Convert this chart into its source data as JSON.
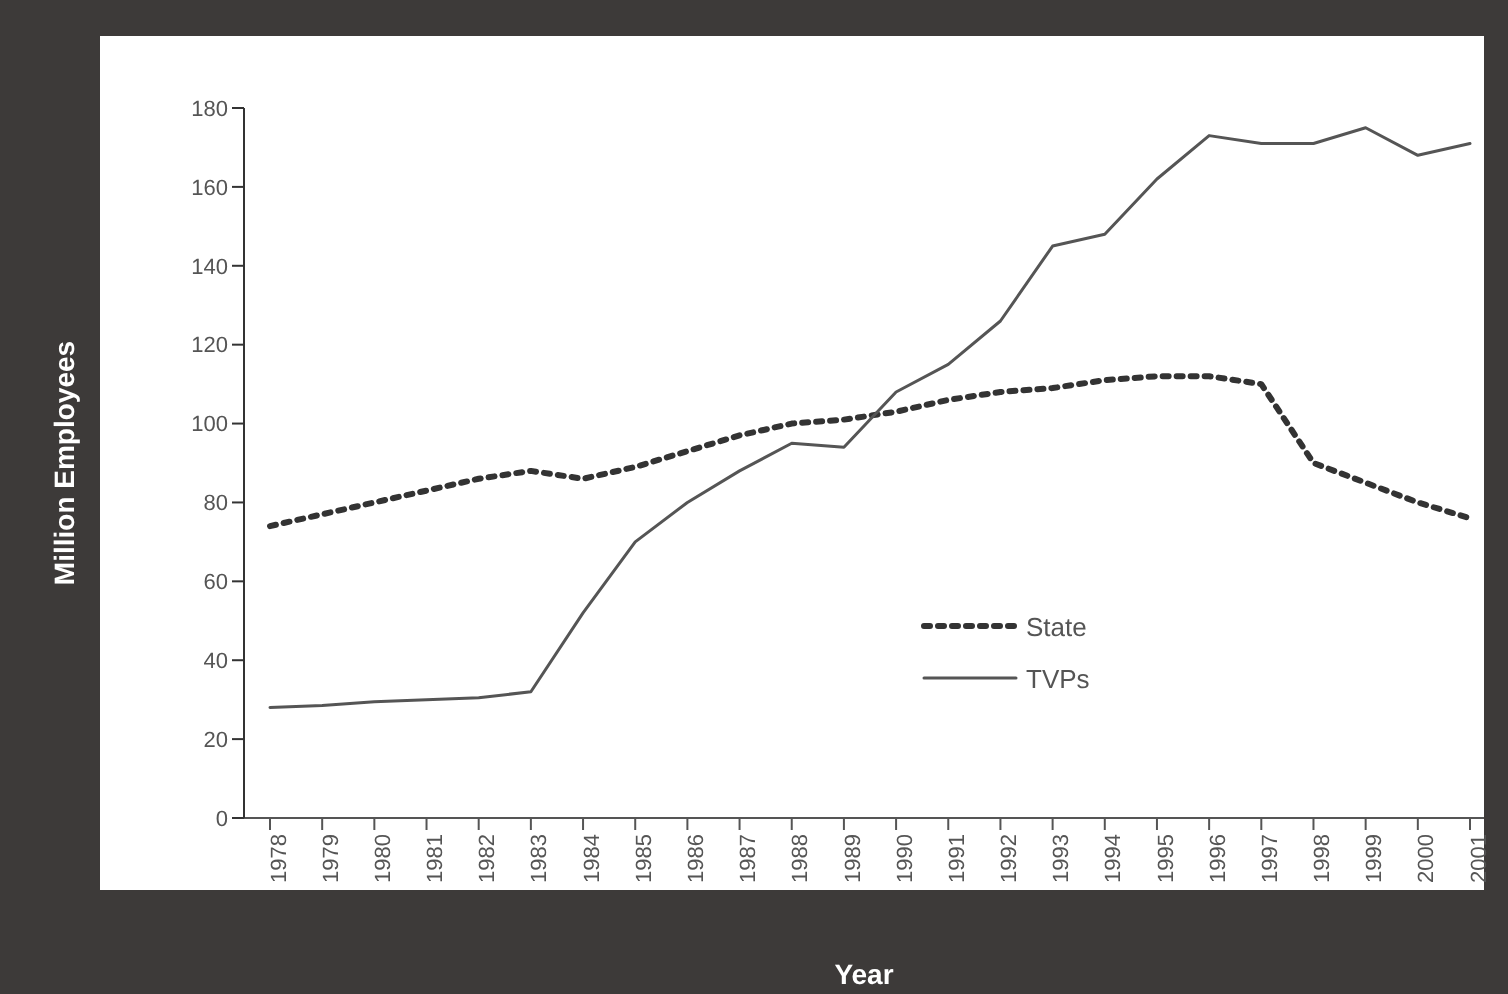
{
  "chart_data": {
    "type": "line",
    "xlabel": "Year",
    "ylabel": "Million Employees",
    "categories": [
      "1978",
      "1979",
      "1980",
      "1981",
      "1982",
      "1983",
      "1984",
      "1985",
      "1986",
      "1987",
      "1988",
      "1989",
      "1990",
      "1991",
      "1992",
      "1993",
      "1994",
      "1995",
      "1996",
      "1997",
      "1998",
      "1999",
      "2000",
      "2001"
    ],
    "series": [
      {
        "name": "State",
        "color": "#333333",
        "line_style": "dotted",
        "values": [
          74,
          77,
          80,
          83,
          86,
          88,
          86,
          89,
          93,
          97,
          100,
          101,
          103,
          106,
          108,
          109,
          111,
          112,
          112,
          110,
          90,
          85,
          80,
          76
        ]
      },
      {
        "name": "TVPs",
        "color": "#555555",
        "line_style": "solid",
        "values": [
          28,
          28.5,
          29.5,
          30,
          30.5,
          32,
          52,
          70,
          80,
          88,
          95,
          94,
          108,
          115,
          126,
          145,
          148,
          162,
          173,
          171,
          171,
          175,
          168,
          171
        ]
      }
    ],
    "ylim": [
      0,
      180
    ],
    "yticks": [
      0,
      20,
      40,
      60,
      80,
      100,
      120,
      140,
      160,
      180
    ],
    "grid": false,
    "legend": "bottom right",
    "marker": "none"
  }
}
